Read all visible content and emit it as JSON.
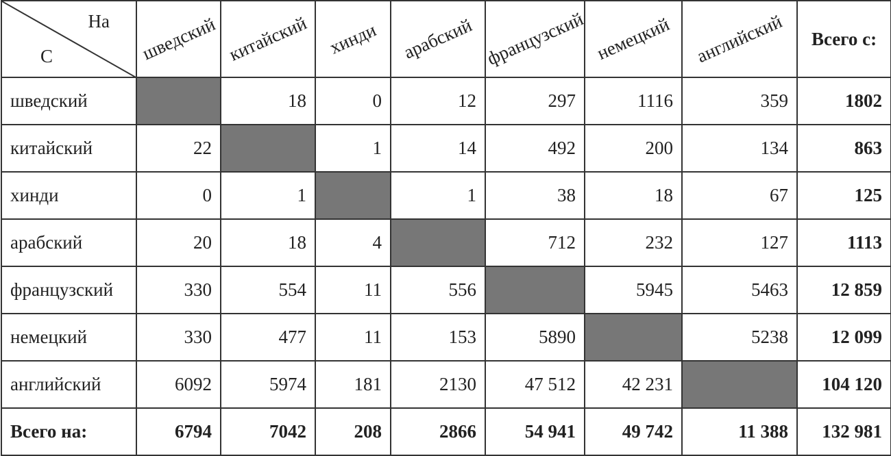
{
  "table": {
    "corner": {
      "top": "На",
      "bottom": "С"
    },
    "columns": [
      "шведский",
      "китайский",
      "хинди",
      "арабский",
      "французский",
      "немецкий",
      "английский",
      "Всего с:"
    ],
    "rows": [
      {
        "label": "шведский",
        "cells": [
          null,
          18,
          0,
          12,
          297,
          1116,
          359,
          1802
        ]
      },
      {
        "label": "китайский",
        "cells": [
          22,
          null,
          1,
          14,
          492,
          200,
          134,
          863
        ]
      },
      {
        "label": "хинди",
        "cells": [
          0,
          1,
          null,
          1,
          38,
          18,
          67,
          125
        ]
      },
      {
        "label": "арабский",
        "cells": [
          20,
          18,
          4,
          null,
          712,
          232,
          127,
          1113
        ]
      },
      {
        "label": "французский",
        "cells": [
          330,
          554,
          11,
          556,
          null,
          5945,
          5463,
          "12 859"
        ]
      },
      {
        "label": "немецкий",
        "cells": [
          330,
          477,
          11,
          153,
          5890,
          null,
          5238,
          "12 099"
        ]
      },
      {
        "label": "английский",
        "cells": [
          6092,
          5974,
          181,
          2130,
          "47 512",
          "42 231",
          null,
          "104 120"
        ]
      },
      {
        "label": "Всего на:",
        "cells": [
          6794,
          7042,
          208,
          2866,
          "54 941",
          "49 742",
          "11 388",
          "132 981"
        ]
      }
    ]
  }
}
